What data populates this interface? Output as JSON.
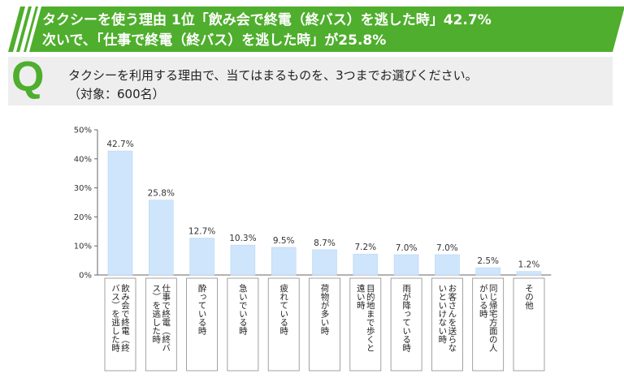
{
  "banner": {
    "line1": "タクシーを使う理由 1位「飲み会で終電（終バス）を逃した時」42.7%",
    "line2": "次いで、「仕事で終電（終バス）を逃した時」が25.8%"
  },
  "question": {
    "letter": "Q",
    "line1": "タクシーを利用する理由で、当てはまるものを、3つまでお選びください。",
    "line2": "（対象：600名）"
  },
  "colors": {
    "banner": "#4fae2d",
    "bar": "#cfe5fb",
    "bar_edge": "#b9d6f3",
    "q_accent": "#4fae2d"
  },
  "chart_data": {
    "type": "bar",
    "title": "",
    "xlabel": "",
    "ylabel": "",
    "ylim": [
      0,
      50
    ],
    "yticks": [
      "0%",
      "10%",
      "20%",
      "30%",
      "40%",
      "50%"
    ],
    "grid": false,
    "categories": [
      "飲み会で終電（終バス）を逃した時",
      "仕事で終電（終バス）を逃した時",
      "酔っている時",
      "急いでいる時",
      "疲れている時",
      "荷物が多い時",
      "目的地まで歩くと遠い時",
      "雨が降っている時",
      "お客さんを送らないといけない時",
      "同じ帰宅方面の人がいる時",
      "その他"
    ],
    "category_columns": [
      [
        "飲み会で終電（終",
        "バス）を逃した時"
      ],
      [
        "仕事で終電（終バ",
        "ス）を逃した時"
      ],
      [
        "酔っている時"
      ],
      [
        "急いでいる時"
      ],
      [
        "疲れている時"
      ],
      [
        "荷物が多い時"
      ],
      [
        "目的地まで歩くと",
        "遠い時"
      ],
      [
        "雨が降っている時"
      ],
      [
        "お客さんを送らな",
        "いといけない時"
      ],
      [
        "同じ帰宅方面の人",
        "がいる時"
      ],
      [
        "その他"
      ]
    ],
    "values": [
      42.7,
      25.8,
      12.7,
      10.3,
      9.5,
      8.7,
      7.2,
      7.0,
      7.0,
      2.5,
      1.2
    ],
    "value_labels": [
      "42.7%",
      "25.8%",
      "12.7%",
      "10.3%",
      "9.5%",
      "8.7%",
      "7.2%",
      "7.0%",
      "7.0%",
      "2.5%",
      "1.2%"
    ]
  }
}
